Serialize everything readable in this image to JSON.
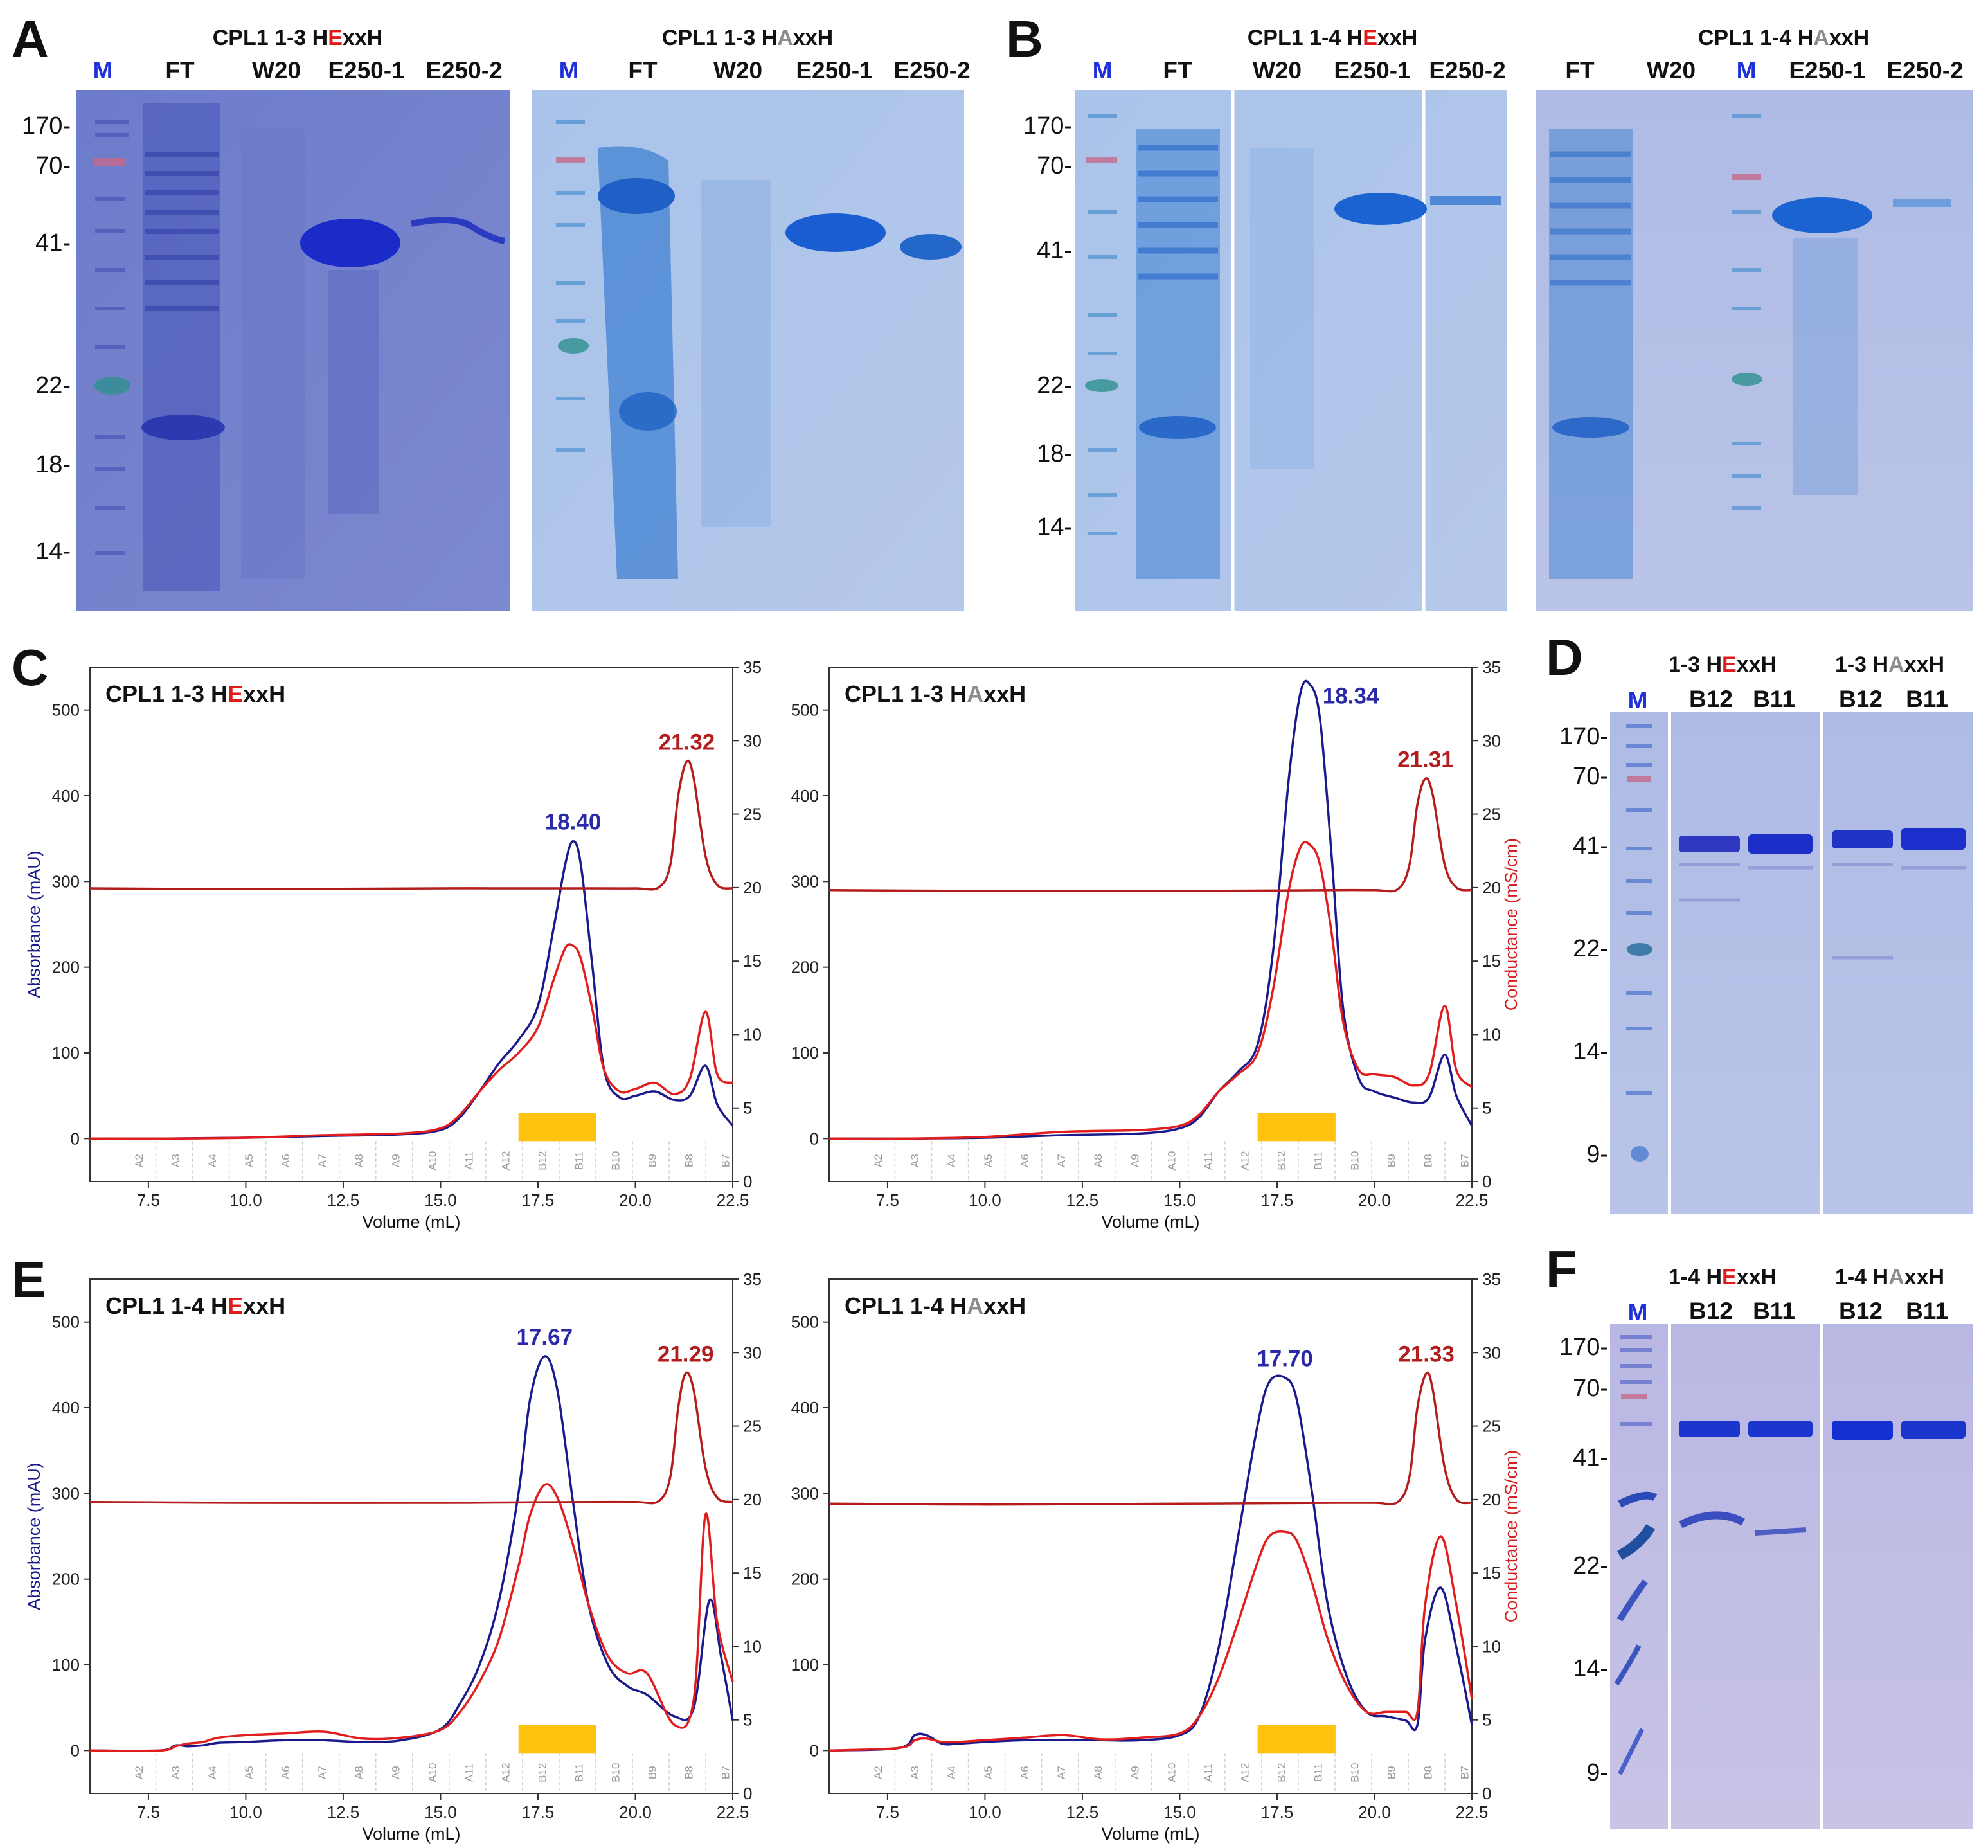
{
  "panels": {
    "A": "A",
    "B": "B",
    "C": "C",
    "D": "D",
    "E": "E",
    "F": "F"
  },
  "gels": {
    "a1": {
      "title_pre": "CPL1 1-3 H",
      "mut": "E",
      "title_post": "xxH",
      "mut_color": "#e01a1a",
      "lanes": [
        "M",
        "FT",
        "W20",
        "E250-1",
        "E250-2"
      ]
    },
    "a2": {
      "title_pre": "CPL1 1-3 H",
      "mut": "A",
      "title_post": "xxH",
      "mut_color": "#8c8c8c",
      "lanes": [
        "M",
        "FT",
        "W20",
        "E250-1",
        "E250-2"
      ]
    },
    "b1": {
      "title_pre": "CPL1 1-4 H",
      "mut": "E",
      "title_post": "xxH",
      "mut_color": "#e01a1a",
      "lanes": [
        "M",
        "FT",
        "W20",
        "E250-1",
        "E250-2"
      ]
    },
    "b2": {
      "title_pre": "CPL1 1-4 H",
      "mut": "A",
      "title_post": "xxH",
      "mut_color": "#8c8c8c",
      "lanes": [
        "FT",
        "W20",
        "M",
        "E250-1",
        "E250-2"
      ]
    },
    "d": {
      "groups": [
        {
          "pre": "1-3 H",
          "mut": "E",
          "post": "xxH",
          "mut_color": "#e01a1a",
          "lanes": [
            "B12",
            "B11"
          ]
        },
        {
          "pre": "1-3 H",
          "mut": "A",
          "post": "xxH",
          "mut_color": "#8c8c8c",
          "lanes": [
            "B12",
            "B11"
          ]
        }
      ],
      "marker": "M"
    },
    "f": {
      "groups": [
        {
          "pre": "1-4 H",
          "mut": "E",
          "post": "xxH",
          "mut_color": "#e01a1a",
          "lanes": [
            "B12",
            "B11"
          ]
        },
        {
          "pre": "1-4 H",
          "mut": "A",
          "post": "xxH",
          "mut_color": "#8c8c8c",
          "lanes": [
            "B12",
            "B11"
          ]
        }
      ],
      "marker": "M"
    }
  },
  "mw_markers": {
    "A": [
      "170-",
      "70-",
      "41-",
      "22-",
      "18-",
      "14-"
    ],
    "B": [
      "170-",
      "70-",
      "41-",
      "22-",
      "18-",
      "14-"
    ],
    "D": [
      "170-",
      "70-",
      "41-",
      "22-",
      "14-",
      "9-"
    ],
    "F": [
      "170-",
      "70-",
      "41-",
      "22-",
      "14-",
      "9-"
    ]
  },
  "chart_data": [
    {
      "type": "line",
      "panel": "C",
      "title_pre": "CPL1 1-3 H",
      "title_mut": "E",
      "title_post": "xxH",
      "mut_color": "#e01a1a",
      "xlabel": "Volume (mL)",
      "ylabel": "Absorbance (mAU)",
      "y2label": "",
      "xlim": [
        6,
        22.5
      ],
      "ylim": [
        -50,
        550
      ],
      "y2lim": [
        0,
        35
      ],
      "xticks": [
        "7.5",
        "10.0",
        "12.5",
        "15.0",
        "17.5",
        "20.0",
        "22.5"
      ],
      "yticks": [
        "0",
        "100",
        "200",
        "300",
        "400",
        "500"
      ],
      "y2ticks": [
        "0",
        "5",
        "10",
        "15",
        "20",
        "25",
        "30",
        "35"
      ],
      "fractions": [
        "A2",
        "A3",
        "A4",
        "A5",
        "A6",
        "A7",
        "A8",
        "A9",
        "A10",
        "A11",
        "A12",
        "B12",
        "B11",
        "B10",
        "B9",
        "B8",
        "B7"
      ],
      "collected_range": [
        17,
        19
      ],
      "peak_labels": [
        {
          "text": "18.40",
          "x": 18.4,
          "y": 347,
          "color": "blue"
        },
        {
          "text": "21.32",
          "x": 21.32,
          "y": 440,
          "color": "red"
        }
      ],
      "series": [
        {
          "color": "#1a1a8c",
          "x": [
            6,
            8,
            10,
            12,
            14,
            15,
            15.5,
            16,
            16.5,
            17,
            17.5,
            17.9,
            18.2,
            18.4,
            18.6,
            18.9,
            19.2,
            19.6,
            20,
            20.5,
            21,
            21.4,
            21.8,
            22.1,
            22.5
          ],
          "y": [
            0,
            0,
            1,
            3,
            5,
            10,
            25,
            55,
            88,
            115,
            155,
            245,
            320,
            347,
            320,
            200,
            80,
            48,
            50,
            55,
            45,
            50,
            85,
            40,
            15
          ]
        },
        {
          "color": "#e11d1d",
          "x": [
            6,
            8,
            10,
            12,
            14,
            15,
            15.5,
            16,
            16.5,
            17,
            17.5,
            17.9,
            18.2,
            18.4,
            18.6,
            18.9,
            19.2,
            19.6,
            20,
            20.5,
            21,
            21.4,
            21.8,
            22.1,
            22.5
          ],
          "y": [
            0,
            0,
            1,
            4,
            6,
            12,
            28,
            55,
            80,
            100,
            130,
            185,
            222,
            225,
            210,
            150,
            80,
            55,
            58,
            65,
            52,
            70,
            148,
            75,
            65
          ]
        },
        {
          "color": "#b51c1c",
          "x": [
            6,
            10,
            15,
            19,
            20,
            20.6,
            20.9,
            21.1,
            21.32,
            21.5,
            21.8,
            22.1,
            22.5
          ],
          "y": [
            292,
            291,
            292,
            292,
            292,
            293,
            320,
            400,
            440,
            420,
            330,
            296,
            292
          ]
        }
      ]
    },
    {
      "type": "line",
      "panel": "C",
      "title_pre": "CPL1 1-3 H",
      "title_mut": "A",
      "title_post": "xxH",
      "mut_color": "#8c8c8c",
      "xlabel": "Volume (mL)",
      "ylabel": "",
      "y2label": "Conductance (mS/cm)",
      "xlim": [
        6,
        22.5
      ],
      "ylim": [
        -50,
        550
      ],
      "y2lim": [
        0,
        35
      ],
      "xticks": [
        "7.5",
        "10.0",
        "12.5",
        "15.0",
        "17.5",
        "20.0",
        "22.5"
      ],
      "yticks": [
        "0",
        "100",
        "200",
        "300",
        "400",
        "500"
      ],
      "y2ticks": [
        "0",
        "5",
        "10",
        "15",
        "20",
        "25",
        "30",
        "35"
      ],
      "fractions": [
        "A2",
        "A3",
        "A4",
        "A5",
        "A6",
        "A7",
        "A8",
        "A9",
        "A10",
        "A11",
        "A12",
        "B12",
        "B11",
        "B10",
        "B9",
        "B8",
        "B7"
      ],
      "collected_range": [
        17,
        19
      ],
      "peak_labels": [
        {
          "text": "18.34",
          "x": 18.34,
          "y": 530,
          "color": "blue"
        },
        {
          "text": "21.31",
          "x": 21.31,
          "y": 420,
          "color": "red"
        }
      ],
      "series": [
        {
          "color": "#1a1a8c",
          "x": [
            6,
            8,
            10,
            12,
            14,
            15,
            15.5,
            16,
            16.5,
            17,
            17.4,
            17.8,
            18.1,
            18.34,
            18.6,
            18.9,
            19.2,
            19.6,
            20,
            20.5,
            21,
            21.4,
            21.8,
            22.1,
            22.5
          ],
          "y": [
            0,
            0,
            1,
            4,
            6,
            12,
            25,
            55,
            78,
            110,
            220,
            420,
            520,
            530,
            490,
            330,
            150,
            70,
            55,
            48,
            42,
            48,
            98,
            50,
            15
          ]
        },
        {
          "color": "#e11d1d",
          "x": [
            6,
            8,
            10,
            12,
            14,
            15,
            15.5,
            16,
            16.5,
            17,
            17.4,
            17.8,
            18.1,
            18.34,
            18.6,
            18.9,
            19.2,
            19.6,
            20,
            20.5,
            21,
            21.4,
            21.8,
            22.1,
            22.5
          ],
          "y": [
            0,
            0,
            2,
            8,
            10,
            15,
            28,
            55,
            75,
            100,
            175,
            290,
            340,
            343,
            320,
            240,
            135,
            80,
            75,
            72,
            62,
            75,
            155,
            80,
            60
          ]
        },
        {
          "color": "#b51c1c",
          "x": [
            6,
            10,
            15,
            19,
            20,
            20.6,
            20.9,
            21.1,
            21.31,
            21.5,
            21.8,
            22.1,
            22.5
          ],
          "y": [
            290,
            289,
            289,
            290,
            290,
            291,
            320,
            390,
            420,
            400,
            320,
            293,
            290
          ]
        }
      ]
    },
    {
      "type": "line",
      "panel": "E",
      "title_pre": "CPL1 1-4 H",
      "title_mut": "E",
      "title_post": "xxH",
      "mut_color": "#e01a1a",
      "xlabel": "Volume (mL)",
      "ylabel": "Absorbance (mAU)",
      "y2label": "",
      "xlim": [
        6,
        22.5
      ],
      "ylim": [
        -50,
        550
      ],
      "y2lim": [
        0,
        35
      ],
      "xticks": [
        "7.5",
        "10.0",
        "12.5",
        "15.0",
        "17.5",
        "20.0",
        "22.5"
      ],
      "yticks": [
        "0",
        "100",
        "200",
        "300",
        "400",
        "500"
      ],
      "y2ticks": [
        "0",
        "5",
        "10",
        "15",
        "20",
        "25",
        "30",
        "35"
      ],
      "fractions": [
        "A2",
        "A3",
        "A4",
        "A5",
        "A6",
        "A7",
        "A8",
        "A9",
        "A10",
        "A11",
        "A12",
        "B12",
        "B11",
        "B10",
        "B9",
        "B8",
        "B7"
      ],
      "collected_range": [
        17,
        19
      ],
      "peak_labels": [
        {
          "text": "17.67",
          "x": 17.67,
          "y": 460,
          "color": "blue"
        },
        {
          "text": "21.29",
          "x": 21.29,
          "y": 440,
          "color": "red"
        }
      ],
      "series": [
        {
          "color": "#1a1a8c",
          "x": [
            6,
            7.8,
            8.2,
            8.5,
            8.9,
            9.3,
            10,
            11,
            12,
            13,
            14,
            15,
            15.5,
            16,
            16.5,
            17,
            17.3,
            17.67,
            18,
            18.4,
            18.8,
            19.3,
            19.8,
            20.3,
            21,
            21.5,
            21.9,
            22.2,
            22.5
          ],
          "y": [
            0,
            0,
            6,
            5,
            6,
            9,
            10,
            12,
            12,
            10,
            12,
            25,
            55,
            100,
            175,
            300,
            410,
            460,
            420,
            290,
            170,
            100,
            75,
            65,
            40,
            50,
            175,
            110,
            35
          ]
        },
        {
          "color": "#e11d1d",
          "x": [
            6,
            7.8,
            8.2,
            8.5,
            8.9,
            9.3,
            10,
            11,
            12,
            13,
            14,
            15,
            15.5,
            16,
            16.5,
            17,
            17.3,
            17.67,
            18,
            18.4,
            18.8,
            19.3,
            19.8,
            20.3,
            21,
            21.5,
            21.8,
            22.1,
            22.5
          ],
          "y": [
            0,
            0,
            5,
            8,
            10,
            15,
            18,
            20,
            22,
            14,
            15,
            24,
            45,
            80,
            130,
            215,
            275,
            310,
            295,
            240,
            170,
            110,
            90,
            90,
            30,
            60,
            275,
            150,
            80
          ]
        },
        {
          "color": "#b51c1c",
          "x": [
            6,
            10,
            15,
            19,
            20,
            20.6,
            20.9,
            21.1,
            21.29,
            21.5,
            21.8,
            22.1,
            22.5
          ],
          "y": [
            290,
            289,
            289,
            290,
            290,
            291,
            320,
            400,
            440,
            420,
            330,
            295,
            290
          ]
        }
      ]
    },
    {
      "type": "line",
      "panel": "E",
      "title_pre": "CPL1 1-4 H",
      "title_mut": "A",
      "title_post": "xxH",
      "mut_color": "#8c8c8c",
      "xlabel": "Volume (mL)",
      "ylabel": "",
      "y2label": "Conductance (mS/cm)",
      "xlim": [
        6,
        22.5
      ],
      "ylim": [
        -50,
        550
      ],
      "y2lim": [
        0,
        35
      ],
      "xticks": [
        "7.5",
        "10.0",
        "12.5",
        "15.0",
        "17.5",
        "20.0",
        "22.5"
      ],
      "yticks": [
        "0",
        "100",
        "200",
        "300",
        "400",
        "500"
      ],
      "y2ticks": [
        "0",
        "5",
        "10",
        "15",
        "20",
        "25",
        "30",
        "35"
      ],
      "fractions": [
        "A2",
        "A3",
        "A4",
        "A5",
        "A6",
        "A7",
        "A8",
        "A9",
        "A10",
        "A11",
        "A12",
        "B12",
        "B11",
        "B10",
        "B9",
        "B8",
        "B7"
      ],
      "collected_range": [
        17,
        19
      ],
      "peak_labels": [
        {
          "text": "17.70",
          "x": 17.7,
          "y": 435,
          "color": "blue"
        },
        {
          "text": "21.33",
          "x": 21.33,
          "y": 440,
          "color": "red"
        }
      ],
      "series": [
        {
          "color": "#1a1a8c",
          "x": [
            6,
            7.8,
            8.2,
            8.5,
            8.9,
            9.3,
            10,
            11,
            12,
            13,
            14,
            15,
            15.5,
            16,
            16.5,
            17,
            17.3,
            17.7,
            18,
            18.4,
            18.8,
            19.3,
            19.8,
            20.3,
            20.8,
            21.1,
            21.3,
            21.7,
            22.1,
            22.5
          ],
          "y": [
            0,
            3,
            18,
            18,
            8,
            8,
            10,
            12,
            12,
            12,
            12,
            18,
            40,
            120,
            250,
            380,
            430,
            435,
            410,
            300,
            170,
            85,
            45,
            40,
            35,
            30,
            130,
            190,
            120,
            30
          ]
        },
        {
          "color": "#e11d1d",
          "x": [
            6,
            7.8,
            8.2,
            8.5,
            8.9,
            9.3,
            10,
            11,
            12,
            13,
            14,
            15,
            15.5,
            16,
            16.5,
            17,
            17.3,
            17.7,
            18,
            18.4,
            18.8,
            19.3,
            19.8,
            20.3,
            20.8,
            21.1,
            21.3,
            21.7,
            22.1,
            22.5
          ],
          "y": [
            0,
            3,
            12,
            14,
            10,
            10,
            12,
            15,
            18,
            13,
            15,
            20,
            40,
            85,
            150,
            220,
            250,
            255,
            245,
            195,
            130,
            75,
            45,
            45,
            45,
            45,
            170,
            250,
            170,
            60
          ]
        },
        {
          "color": "#b51c1c",
          "x": [
            6,
            10,
            15,
            19,
            20,
            20.6,
            20.9,
            21.1,
            21.33,
            21.5,
            21.8,
            22.1,
            22.5
          ],
          "y": [
            288,
            287,
            288,
            289,
            289,
            290,
            320,
            400,
            440,
            420,
            330,
            293,
            289
          ]
        }
      ]
    }
  ]
}
